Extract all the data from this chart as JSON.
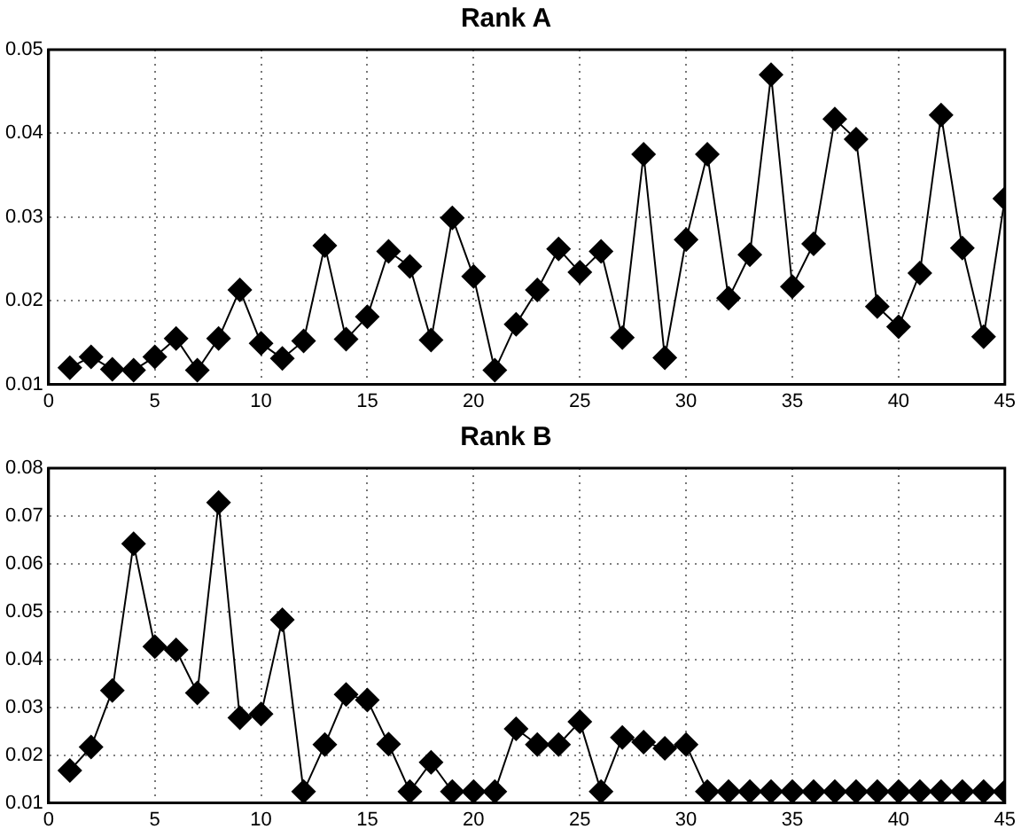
{
  "chart_data": [
    {
      "type": "line",
      "title": "Rank A",
      "x": [
        1,
        2,
        3,
        4,
        5,
        6,
        7,
        8,
        9,
        10,
        11,
        12,
        13,
        14,
        15,
        16,
        17,
        18,
        19,
        20,
        21,
        22,
        23,
        24,
        25,
        26,
        27,
        28,
        29,
        30,
        31,
        32,
        33,
        34,
        35,
        36,
        37,
        38,
        39,
        40,
        41,
        42,
        43,
        44,
        45
      ],
      "series": [
        {
          "color": "#000000",
          "values": [
            0.012,
            0.0133,
            0.0118,
            0.0117,
            0.0133,
            0.0155,
            0.0117,
            0.0155,
            0.0213,
            0.0149,
            0.0131,
            0.0152,
            0.0266,
            0.0154,
            0.0181,
            0.0259,
            0.0241,
            0.0153,
            0.0299,
            0.0229,
            0.0117,
            0.0172,
            0.0213,
            0.0262,
            0.0234,
            0.0259,
            0.0156,
            0.0375,
            0.0132,
            0.0273,
            0.0375,
            0.0203,
            0.0255,
            0.047,
            0.0217,
            0.0268,
            0.0417,
            0.0393,
            0.0193,
            0.0169,
            0.0233,
            0.0422,
            0.0263,
            0.0157,
            0.0322
          ]
        }
      ],
      "xlim": [
        0,
        45
      ],
      "xticks": [
        0,
        5,
        10,
        15,
        20,
        25,
        30,
        35,
        40,
        45
      ],
      "ylim": [
        0.01,
        0.05
      ],
      "yticks": [
        0.01,
        0.02,
        0.03,
        0.04,
        0.05
      ],
      "grid": true,
      "legend": false,
      "marker": "diamond",
      "line_style": "solid"
    },
    {
      "type": "line",
      "title": "Rank B",
      "x": [
        1,
        2,
        3,
        4,
        5,
        6,
        7,
        8,
        9,
        10,
        11,
        12,
        13,
        14,
        15,
        16,
        17,
        18,
        19,
        20,
        21,
        22,
        23,
        24,
        25,
        26,
        27,
        28,
        29,
        30,
        31,
        32,
        33,
        34,
        35,
        36,
        37,
        38,
        39,
        40,
        41,
        42,
        43,
        44,
        45
      ],
      "series": [
        {
          "color": "#000000",
          "values": [
            0.0168,
            0.0217,
            0.0335,
            0.0642,
            0.0427,
            0.042,
            0.033,
            0.0728,
            0.0278,
            0.0286,
            0.0483,
            0.0124,
            0.0222,
            0.0327,
            0.0315,
            0.0223,
            0.0124,
            0.0185,
            0.0124,
            0.0124,
            0.0124,
            0.0255,
            0.0222,
            0.0222,
            0.027,
            0.0124,
            0.0237,
            0.0227,
            0.0214,
            0.0222,
            0.0124,
            0.0124,
            0.0124,
            0.0124,
            0.0124,
            0.0124,
            0.0124,
            0.0124,
            0.0124,
            0.0124,
            0.0124,
            0.0124,
            0.0124,
            0.0124,
            0.0124
          ]
        }
      ],
      "xlim": [
        0,
        45
      ],
      "xticks": [
        0,
        5,
        10,
        15,
        20,
        25,
        30,
        35,
        40,
        45
      ],
      "ylim": [
        0.01,
        0.08
      ],
      "yticks": [
        0.01,
        0.02,
        0.03,
        0.04,
        0.05,
        0.06,
        0.07,
        0.08
      ],
      "grid": true,
      "legend": false,
      "marker": "diamond",
      "line_style": "solid"
    }
  ]
}
